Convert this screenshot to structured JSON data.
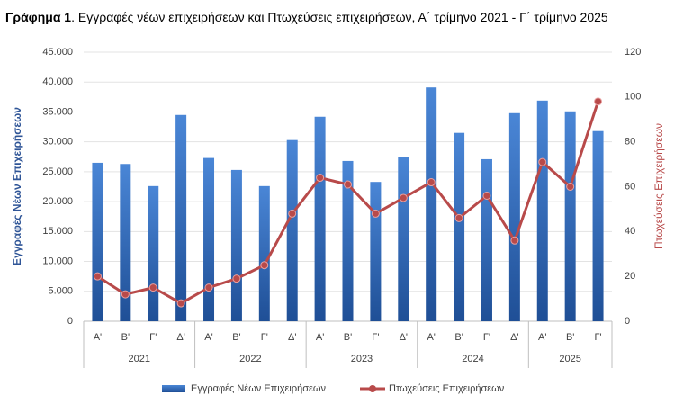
{
  "chart_data": {
    "type": "combo",
    "title_prefix": "Γράφημα 1",
    "title": ". Εγγραφές νέων επιχειρήσεων και Πτωχεύσεις επιχειρήσεων, Α΄ τρίμηνο 2021 - Γ΄ τρίμηνο 2025",
    "y_label": "Εγγραφές Νέων Επιχειρήσεων",
    "y2_label": "Πτωχεύσεις Επιχειρήσεων",
    "categories": [
      "Α'",
      "Β'",
      "Γ'",
      "Δ'",
      "Α'",
      "Β'",
      "Γ'",
      "Δ'",
      "Α'",
      "Β'",
      "Γ'",
      "Δ'",
      "Α'",
      "Β'",
      "Γ'",
      "Δ'",
      "Α'",
      "Β'",
      "Γ'"
    ],
    "group_labels": [
      "2021",
      "2022",
      "2023",
      "2024",
      "2025"
    ],
    "series": [
      {
        "name": "Εγγραφές Νέων Επιχειρήσεων",
        "type": "bar",
        "axis": "y",
        "color": "#3b73c4",
        "values": [
          26500,
          26300,
          22600,
          34500,
          27300,
          25300,
          22600,
          30300,
          34200,
          26800,
          23300,
          27500,
          39100,
          31500,
          27100,
          34800,
          36900,
          35100,
          31800
        ]
      },
      {
        "name": "Πτωχεύσεις Επιχειρήσεων",
        "type": "line",
        "axis": "y2",
        "color": "#b84a4a",
        "values": [
          20,
          12,
          15,
          8,
          15,
          19,
          25,
          48,
          64,
          61,
          48,
          55,
          62,
          46,
          56,
          36,
          71,
          60,
          98
        ]
      }
    ],
    "ylim": [
      0,
      45000
    ],
    "yticks": [
      0,
      {
        "value": 5000,
        "label": "5.000"
      },
      {
        "value": 10000,
        "label": "10.000"
      },
      {
        "value": 15000,
        "label": "15.000"
      },
      {
        "value": 20000,
        "label": "20.000"
      },
      {
        "value": 25000,
        "label": "25.000"
      },
      {
        "value": 30000,
        "label": "30.000"
      },
      {
        "value": 35000,
        "label": "35.000"
      },
      {
        "value": 40000,
        "label": "40.000"
      },
      {
        "value": 45000,
        "label": "45.000"
      }
    ],
    "y2lim": [
      0,
      120
    ],
    "y2ticks": [
      0,
      20,
      40,
      60,
      80,
      100,
      120
    ],
    "grid": true
  }
}
